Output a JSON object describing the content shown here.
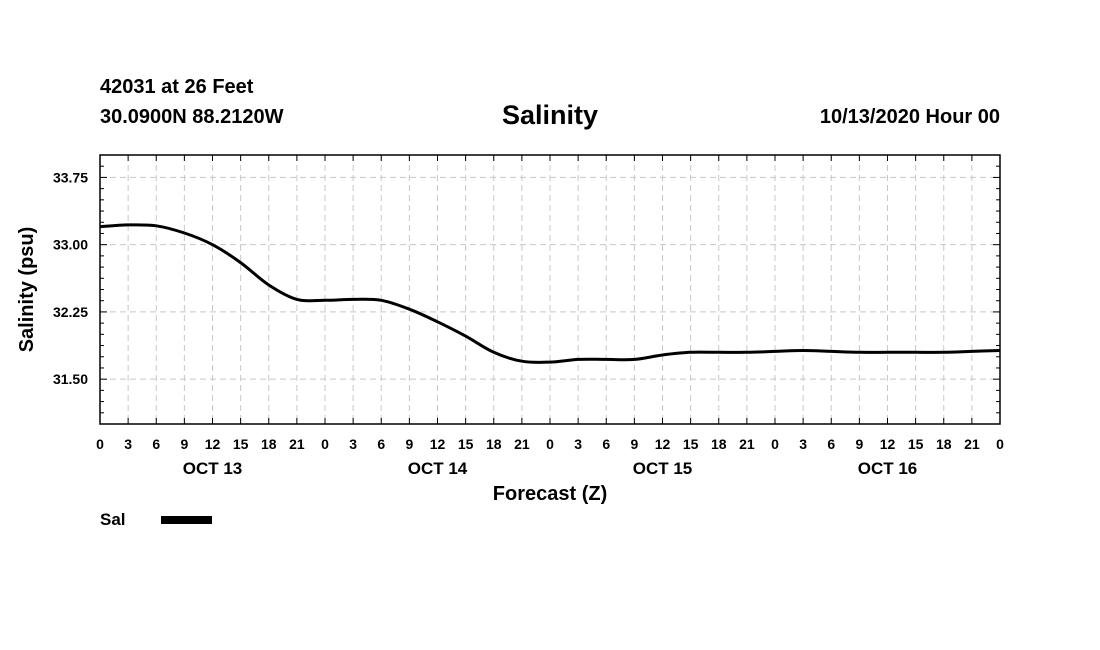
{
  "header": {
    "station": "42031 at 26 Feet",
    "coords": "30.0900N 88.2120W",
    "title": "Salinity",
    "run": "10/13/2020 Hour 00"
  },
  "legend": {
    "label": "Sal"
  },
  "chart_data": {
    "type": "line",
    "title": "Salinity",
    "xlabel": "Forecast (Z)",
    "ylabel": "Salinity (psu)",
    "ylim": [
      31.0,
      34.0
    ],
    "yticks": [
      31.5,
      32.25,
      33.0,
      33.75
    ],
    "ytick_labels": [
      "31.50",
      "32.25",
      "33.00",
      "33.75"
    ],
    "xlim": [
      0,
      96
    ],
    "xtick_labels": [
      "0",
      "3",
      "6",
      "9",
      "12",
      "15",
      "18",
      "21",
      "0",
      "3",
      "6",
      "9",
      "12",
      "15",
      "18",
      "21",
      "0",
      "3",
      "6",
      "9",
      "12",
      "15",
      "18",
      "21",
      "0",
      "3",
      "6",
      "9",
      "12",
      "15",
      "18",
      "21",
      "0"
    ],
    "day_labels": [
      "OCT 13",
      "OCT 14",
      "OCT 15",
      "OCT 16"
    ],
    "grid": true,
    "series": [
      {
        "name": "Sal",
        "color": "#000000",
        "x": [
          0,
          3,
          6,
          9,
          12,
          15,
          18,
          21,
          24,
          27,
          30,
          33,
          36,
          39,
          42,
          45,
          48,
          51,
          54,
          57,
          60,
          63,
          66,
          69,
          72,
          75,
          78,
          81,
          84,
          87,
          90,
          93,
          96
        ],
        "values": [
          33.2,
          33.22,
          33.21,
          33.13,
          33.0,
          32.8,
          32.55,
          32.39,
          32.38,
          32.39,
          32.38,
          32.28,
          32.14,
          31.98,
          31.8,
          31.7,
          31.69,
          31.72,
          31.72,
          31.72,
          31.77,
          31.8,
          31.8,
          31.8,
          31.81,
          31.82,
          31.81,
          31.8,
          31.8,
          31.8,
          31.8,
          31.81,
          31.82
        ]
      }
    ]
  }
}
